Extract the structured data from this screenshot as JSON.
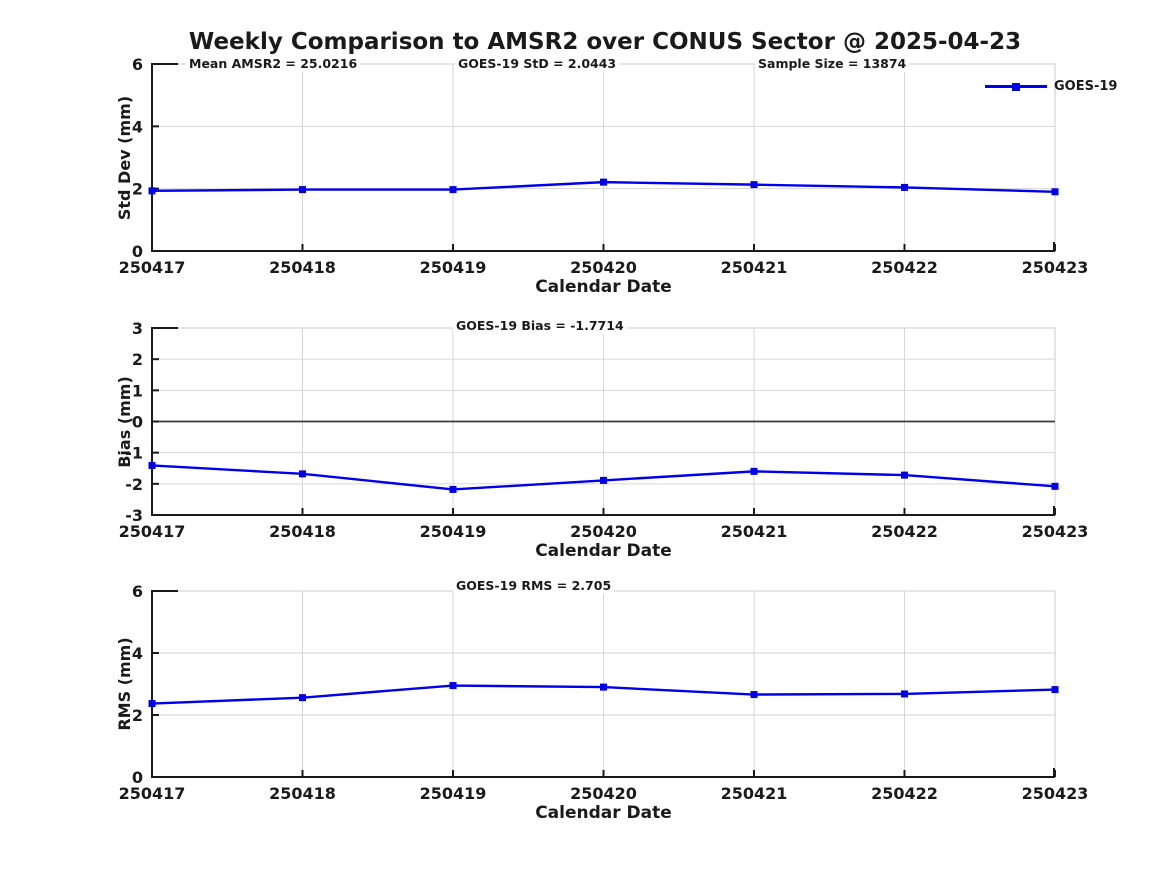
{
  "title": "Weekly Comparison to AMSR2 over CONUS Sector @ 2025-04-23",
  "xlabel": "Calendar Date",
  "categories": [
    "250417",
    "250418",
    "250419",
    "250420",
    "250421",
    "250422",
    "250423"
  ],
  "legend": {
    "label": "GOES-19",
    "position": "top-right-outside"
  },
  "colors": {
    "line": "#0000ee",
    "marker": "#0000ee",
    "grid": "#d6d6d6",
    "ink": "#1a1a1a",
    "zero_line": "#3a3a3a"
  },
  "chart_data": [
    {
      "type": "line",
      "panel": "std-dev",
      "ylabel": "Std Dev (mm)",
      "ylim": [
        0,
        6
      ],
      "yticks": [
        0,
        2,
        4,
        6
      ],
      "grid": true,
      "zero_line": false,
      "categories": [
        "250417",
        "250418",
        "250419",
        "250420",
        "250421",
        "250422",
        "250423"
      ],
      "series": [
        {
          "name": "GOES-19",
          "values": [
            1.93,
            1.97,
            1.97,
            2.21,
            2.13,
            2.04,
            1.9
          ]
        }
      ],
      "annotations": [
        "Mean AMSR2 = 25.0216",
        "GOES-19 StD = 2.0443",
        "Sample Size = 13874"
      ]
    },
    {
      "type": "line",
      "panel": "bias",
      "ylabel": "Bias (mm)",
      "ylim": [
        -3,
        3
      ],
      "yticks": [
        -3,
        -2,
        -1,
        0,
        1,
        2,
        3
      ],
      "grid": true,
      "zero_line": true,
      "categories": [
        "250417",
        "250418",
        "250419",
        "250420",
        "250421",
        "250422",
        "250423"
      ],
      "series": [
        {
          "name": "GOES-19",
          "values": [
            -1.41,
            -1.68,
            -2.18,
            -1.89,
            -1.6,
            -1.72,
            -2.08
          ]
        }
      ],
      "annotations": [
        "GOES-19 Bias  = -1.7714"
      ]
    },
    {
      "type": "line",
      "panel": "rms",
      "ylabel": "RMS (mm)",
      "ylim": [
        0,
        6
      ],
      "yticks": [
        0,
        2,
        4,
        6
      ],
      "grid": true,
      "zero_line": false,
      "categories": [
        "250417",
        "250418",
        "250419",
        "250420",
        "250421",
        "250422",
        "250423"
      ],
      "series": [
        {
          "name": "GOES-19",
          "values": [
            2.37,
            2.56,
            2.95,
            2.9,
            2.66,
            2.68,
            2.82
          ]
        }
      ],
      "annotations": [
        "GOES-19 RMS = 2.705"
      ]
    }
  ]
}
